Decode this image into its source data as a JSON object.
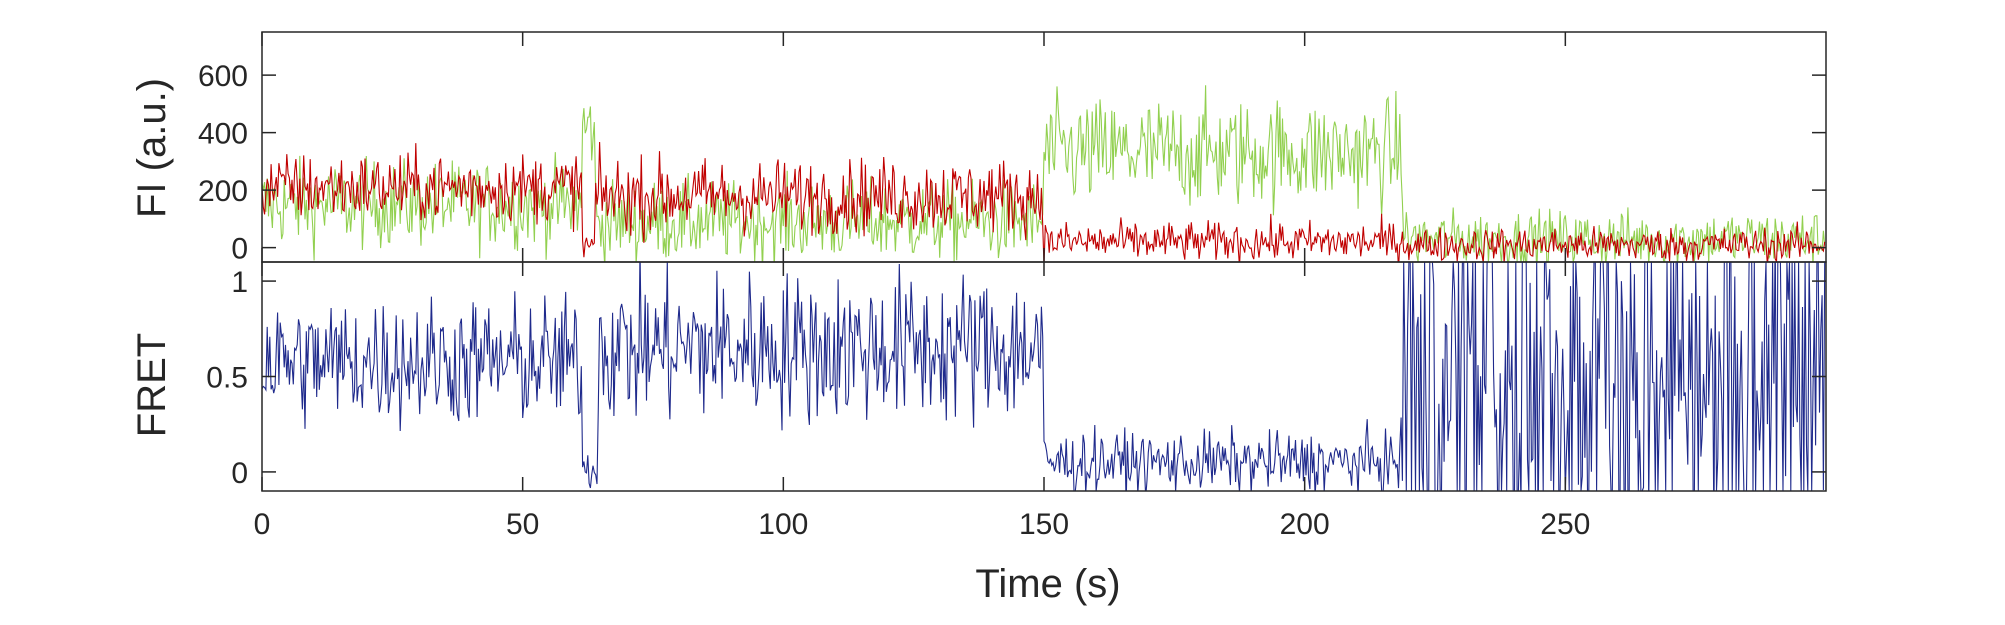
{
  "chart_data": [
    {
      "type": "line",
      "panel": "top",
      "ylabel": "FI (a.u.)",
      "xlim": [
        0,
        300
      ],
      "ylim": [
        -50,
        750
      ],
      "yticks": [
        0,
        200,
        400,
        600
      ],
      "ytick_labels": [
        "0",
        "200",
        "400",
        "600"
      ],
      "grid": false,
      "series": [
        {
          "color": "#92d050",
          "segments": [
            {
              "x": [
                0,
                61.5
              ],
              "mean": 150,
              "noise": 75
            },
            {
              "x": [
                61.5,
                64
              ],
              "mean": 420,
              "noise": 70
            },
            {
              "x": [
                64,
                150
              ],
              "mean": 90,
              "noise": 70
            },
            {
              "x": [
                150,
                219
              ],
              "mean": 330,
              "noise": 95
            },
            {
              "x": [
                219,
                300
              ],
              "mean": 30,
              "noise": 50
            }
          ]
        },
        {
          "color": "#c00000",
          "segments": [
            {
              "x": [
                0,
                61.5
              ],
              "mean": 210,
              "noise": 60
            },
            {
              "x": [
                61.5,
                64
              ],
              "mean": 5,
              "noise": 30
            },
            {
              "x": [
                64,
                150
              ],
              "mean": 180,
              "noise": 65
            },
            {
              "x": [
                150,
                219
              ],
              "mean": 20,
              "noise": 35
            },
            {
              "x": [
                219,
                300
              ],
              "mean": 10,
              "noise": 30
            }
          ]
        }
      ]
    },
    {
      "type": "line",
      "panel": "bottom",
      "xlabel": "Time (s)",
      "ylabel": "FRET",
      "xlim": [
        0,
        300
      ],
      "ylim": [
        -0.1,
        1.1
      ],
      "xticks": [
        0,
        50,
        100,
        150,
        200,
        250
      ],
      "xtick_labels": [
        "0",
        "50",
        "100",
        "150",
        "200",
        "250"
      ],
      "yticks": [
        0,
        0.5,
        1
      ],
      "ytick_labels": [
        "0",
        "0.5",
        "1"
      ],
      "grid": false,
      "series": [
        {
          "color": "#1f2a8c",
          "segments": [
            {
              "x": [
                0,
                61.5
              ],
              "mean": 0.58,
              "noise": 0.17
            },
            {
              "x": [
                61.5,
                64.5
              ],
              "mean": 0.02,
              "noise": 0.06
            },
            {
              "x": [
                64.5,
                150
              ],
              "mean": 0.65,
              "noise": 0.2
            },
            {
              "x": [
                150,
                219
              ],
              "mean": 0.05,
              "noise": 0.08
            },
            {
              "x": [
                219,
                300
              ],
              "mean": 0.5,
              "noise": 0.9
            }
          ]
        }
      ]
    }
  ]
}
